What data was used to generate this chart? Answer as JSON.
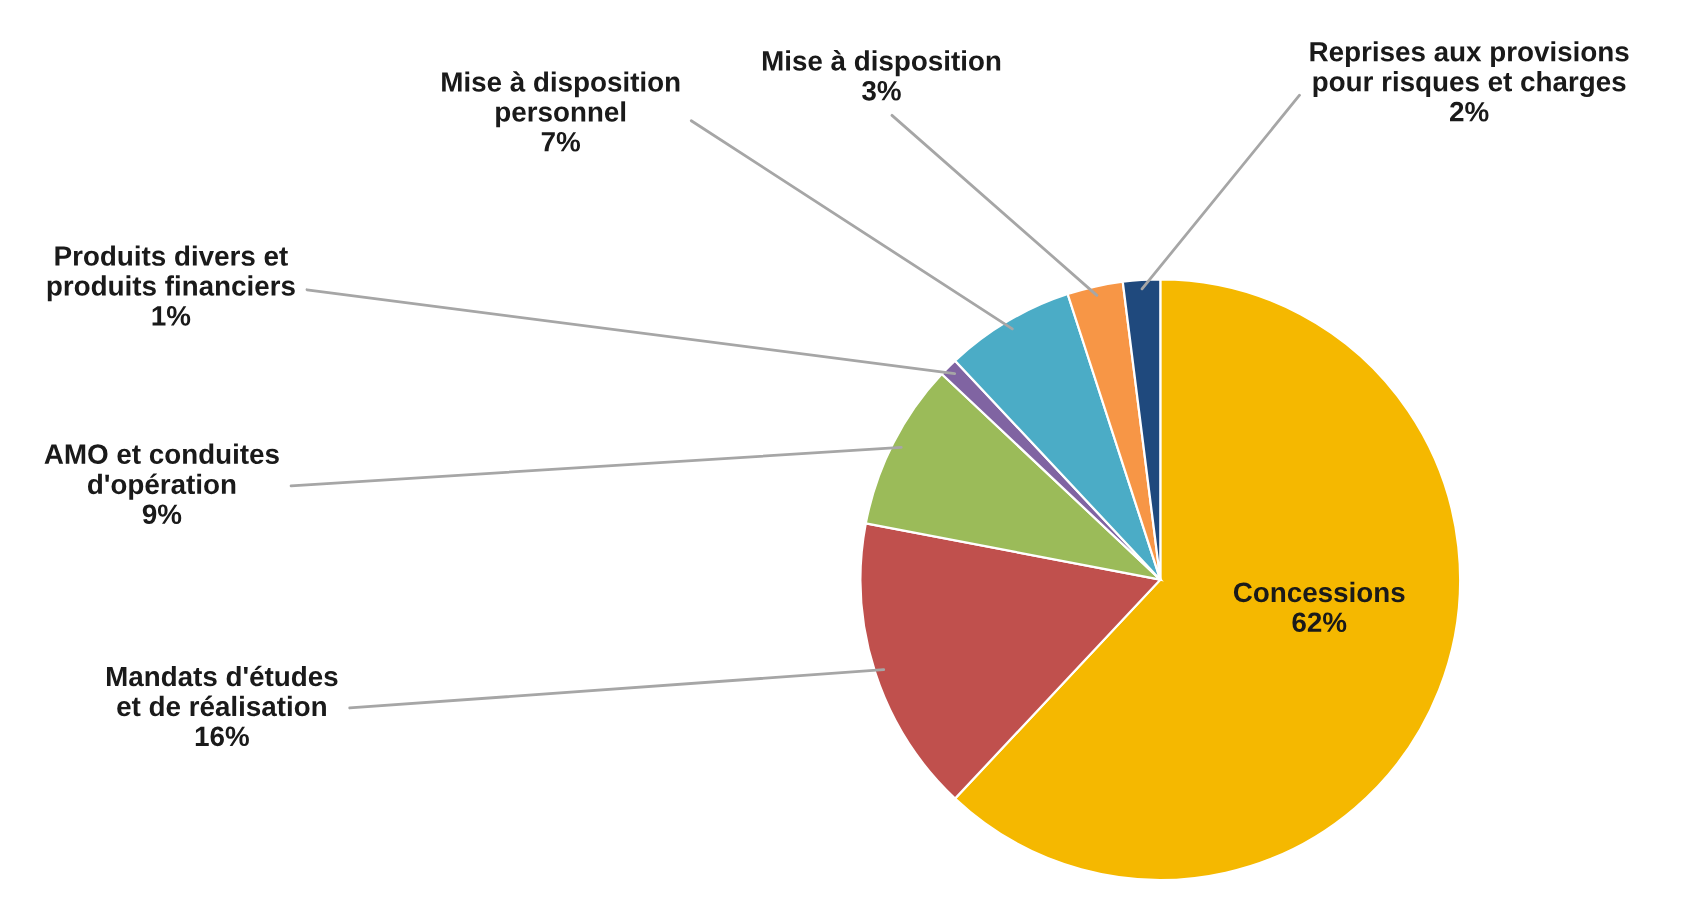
{
  "chart_data": {
    "type": "pie",
    "categories": [
      "Concessions",
      "Mandats d'études\net de réalisation",
      "AMO et conduites\nd'opération",
      "Produits divers et\nproduits financiers",
      "Mise à disposition\npersonnel",
      "Mise à disposition",
      "Reprises aux provisions\npour risques et charges"
    ],
    "values": [
      62,
      16,
      9,
      1,
      7,
      3,
      2
    ],
    "colors": [
      "#f5b800",
      "#c0504d",
      "#9bbb59",
      "#8064a2",
      "#4bacc6",
      "#f79646",
      "#1f497d"
    ],
    "value_labels": [
      "62%",
      "16%",
      "9%",
      "1%",
      "7%",
      "3%",
      "2%"
    ],
    "legend": false
  }
}
